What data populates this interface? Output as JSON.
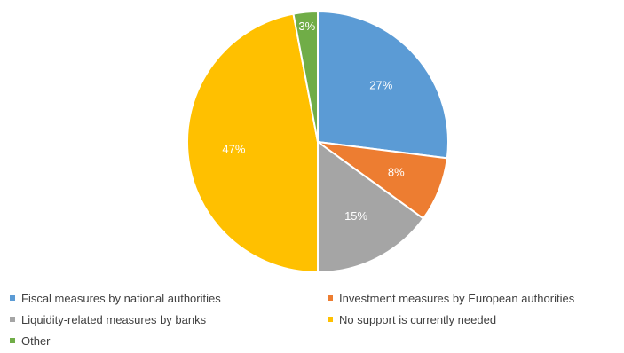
{
  "chart_data": {
    "type": "pie",
    "title": "",
    "slices": [
      {
        "name": "Fiscal measures by national authorities",
        "value": 27,
        "label": "27%",
        "color": "#5B9BD5"
      },
      {
        "name": "Investment measures by European authorities",
        "value": 8,
        "label": "8%",
        "color": "#ED7D31"
      },
      {
        "name": "Liquidity-related measures by banks",
        "value": 15,
        "label": "15%",
        "color": "#A5A5A5"
      },
      {
        "name": "No support is currently needed",
        "value": 47,
        "label": "47%",
        "color": "#FFC000"
      },
      {
        "name": "Other",
        "value": 3,
        "label": "3%",
        "color": "#70AD47"
      }
    ],
    "start_angle": "12 o'clock",
    "direction": "clockwise",
    "legend_position": "bottom"
  },
  "legend": {
    "items": [
      {
        "label": "Fiscal measures by national authorities",
        "color": "#5B9BD5"
      },
      {
        "label": "Investment measures by European authorities",
        "color": "#ED7D31"
      },
      {
        "label": "Liquidity-related measures by banks",
        "color": "#A5A5A5"
      },
      {
        "label": "No support is currently needed",
        "color": "#FFC000"
      },
      {
        "label": "Other",
        "color": "#70AD47"
      }
    ]
  }
}
